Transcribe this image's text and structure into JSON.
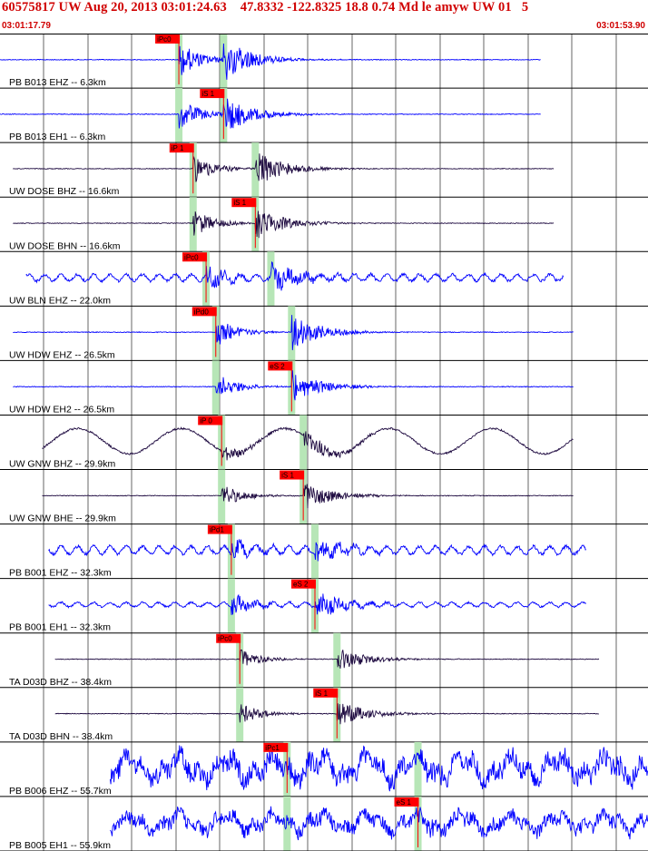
{
  "header": {
    "title": "60575817 UW Aug 20, 2013 03:01:24.63    47.8332 -122.8325 18.8 0.74 Md le amyw UW 01   5",
    "start_time": "03:01:17.79",
    "end_time": "03:01:53.90"
  },
  "colors": {
    "header_text": "#d00000",
    "trace_blue": "#0000ff",
    "trace_dark": "#1e0a40",
    "pick_box": "#ff0000",
    "travel_window": "#b7e6b7",
    "grid": "#000000"
  },
  "traces": [
    {
      "label": "PB B013 EHZ -- 6.3km",
      "color": "blue",
      "start": 0,
      "end": 0.835,
      "amp": 3,
      "p": 0.276,
      "s": 0.345,
      "burst": 90,
      "noise": "flat",
      "pick": "iPc0",
      "pick_at": 0.276,
      "green": [
        0.276,
        0.345
      ]
    },
    {
      "label": "PB B013 EH1 -- 6.3km",
      "color": "blue",
      "start": 0,
      "end": 0.835,
      "amp": 3,
      "p": 0.276,
      "s": 0.345,
      "burst": 80,
      "noise": "flat",
      "pick": "iS 1",
      "pick_at": 0.345,
      "green": [
        0.276,
        0.345
      ]
    },
    {
      "label": "UW DOSE BHZ -- 16.6km",
      "color": "dark",
      "start": 0.02,
      "end": 0.855,
      "amp": 3,
      "p": 0.298,
      "s": 0.394,
      "burst": 75,
      "noise": "flat",
      "pick": "iP 1",
      "pick_at": 0.298,
      "green": [
        0.298,
        0.394
      ]
    },
    {
      "label": "UW DOSE BHN -- 16.6km",
      "color": "dark",
      "start": 0.02,
      "end": 0.855,
      "amp": 3,
      "p": 0.298,
      "s": 0.394,
      "burst": 70,
      "noise": "flat",
      "pick": "iS 1",
      "pick_at": 0.394,
      "green": [
        0.298,
        0.394
      ]
    },
    {
      "label": "UW BLN EHZ -- 22.0km",
      "color": "blue",
      "start": 0.04,
      "end": 0.87,
      "amp": 6,
      "p": 0.318,
      "s": 0.418,
      "burst": 65,
      "noise": "wavy",
      "pick": "iPc0",
      "pick_at": 0.318,
      "green": [
        0.318,
        0.418
      ]
    },
    {
      "label": "UW HDW EHZ -- 26.5km",
      "color": "blue",
      "start": 0.02,
      "end": 0.885,
      "amp": 3,
      "p": 0.333,
      "s": 0.45,
      "burst": 75,
      "noise": "flat",
      "pick": "iPd0",
      "pick_at": 0.333,
      "green": [
        0.333,
        0.45
      ]
    },
    {
      "label": "UW HDW EH2 -- 26.5km",
      "color": "blue",
      "start": 0.02,
      "end": 0.885,
      "amp": 3,
      "p": 0.333,
      "s": 0.45,
      "burst": 70,
      "noise": "flat",
      "pick": "eS 2",
      "pick_at": 0.45,
      "green": [
        0.333,
        0.45
      ]
    },
    {
      "label": "UW GNW BHZ -- 29.9km",
      "color": "dark",
      "start": 0.065,
      "end": 0.885,
      "amp": 14,
      "p": 0.342,
      "s": 0.468,
      "burst": 45,
      "noise": "slow",
      "pick": "iP 0",
      "pick_at": 0.342,
      "green": [
        0.342,
        0.468
      ]
    },
    {
      "label": "UW GNW BHE -- 29.9km",
      "color": "dark",
      "start": 0.065,
      "end": 0.885,
      "amp": 3,
      "p": 0.342,
      "s": 0.468,
      "burst": 60,
      "noise": "flat",
      "pick": "iS 1",
      "pick_at": 0.468,
      "green": [
        0.342,
        0.468
      ]
    },
    {
      "label": "PB B001 EHZ -- 32.3km",
      "color": "blue",
      "start": 0.075,
      "end": 0.905,
      "amp": 7,
      "p": 0.357,
      "s": 0.486,
      "burst": 55,
      "noise": "wavy",
      "pick": "iPd1",
      "pick_at": 0.357,
      "green": [
        0.357,
        0.486
      ]
    },
    {
      "label": "PB B001 EH1 -- 32.3km",
      "color": "blue",
      "start": 0.075,
      "end": 0.905,
      "amp": 4,
      "p": 0.357,
      "s": 0.486,
      "burst": 55,
      "noise": "wavy",
      "pick": "eS 2",
      "pick_at": 0.486,
      "green": [
        0.357,
        0.486
      ]
    },
    {
      "label": "TA D03D BHZ -- 38.4km",
      "color": "dark",
      "start": 0.085,
      "end": 0.925,
      "amp": 3,
      "p": 0.37,
      "s": 0.52,
      "burst": 50,
      "noise": "flat",
      "pick": "iPc0",
      "pick_at": 0.37,
      "green": [
        0.37,
        0.52
      ]
    },
    {
      "label": "TA D03D BHN -- 38.4km",
      "color": "dark",
      "start": 0.085,
      "end": 0.925,
      "amp": 3,
      "p": 0.37,
      "s": 0.52,
      "burst": 55,
      "noise": "flat",
      "pick": "iS 1",
      "pick_at": 0.52,
      "green": [
        0.37,
        0.52
      ]
    },
    {
      "label": "PB B006 EHZ -- 55.7km",
      "color": "blue",
      "start": 0.17,
      "end": 1.0,
      "amp": 20,
      "p": 0.443,
      "s": 0.645,
      "burst": 35,
      "noise": "heavy",
      "pick": "iPc1",
      "pick_at": 0.443,
      "green": [
        0.443,
        0.645
      ]
    },
    {
      "label": "PB B005 EH1 -- 55.9km",
      "color": "blue",
      "start": 0.17,
      "end": 1.0,
      "amp": 14,
      "p": 0.443,
      "s": 0.645,
      "burst": 35,
      "noise": "heavy",
      "pick": "eS 1",
      "pick_at": 0.645,
      "green": [
        0.443,
        0.645
      ]
    }
  ]
}
